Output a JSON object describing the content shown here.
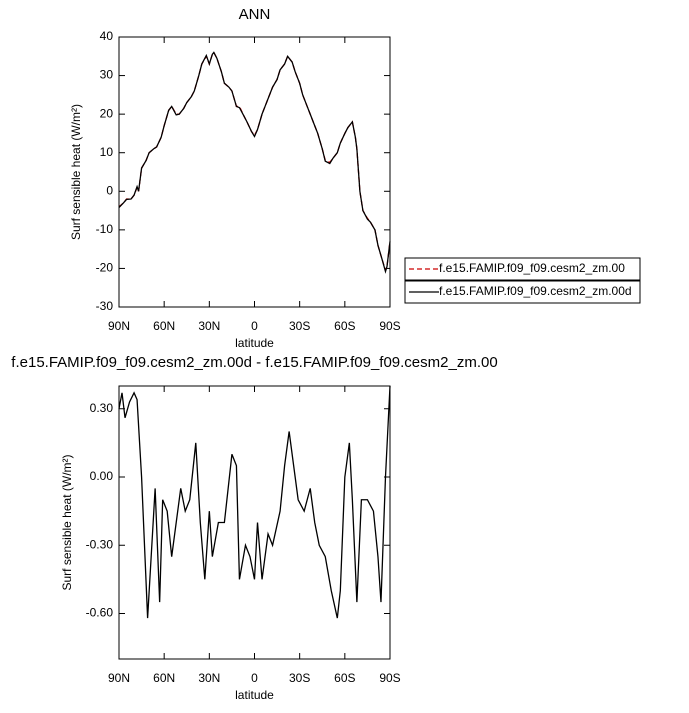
{
  "chart_data": [
    {
      "type": "line",
      "title": "ANN",
      "y_label": "Surf sensible heat (W/m²)",
      "x_label": "latitude",
      "x": [
        90,
        87,
        85,
        82,
        80,
        78,
        77,
        75,
        72,
        70,
        67,
        65,
        62,
        60,
        57,
        55,
        52,
        50,
        47,
        45,
        42,
        40,
        37,
        35,
        32,
        30,
        28,
        27,
        25,
        22,
        20,
        17,
        15,
        12,
        10,
        7,
        5,
        2,
        0,
        -2,
        -5,
        -7,
        -10,
        -12,
        -15,
        -17,
        -20,
        -22,
        -25,
        -27,
        -30,
        -32,
        -35,
        -37,
        -40,
        -42,
        -45,
        -47,
        -50,
        -52,
        -55,
        -57,
        -60,
        -62,
        -65,
        -67,
        -68,
        -70,
        -72,
        -75,
        -77,
        -80,
        -82,
        -85,
        -87,
        -88,
        -90
      ],
      "series": [
        {
          "name": "f.e15.FAMIP.f09_f09.cesm2_zm.00",
          "color": "#cc0000",
          "dash": true,
          "values": [
            -4,
            -3,
            -2,
            -2,
            -1,
            1,
            0,
            6,
            8,
            10,
            11,
            11.5,
            14,
            17,
            21,
            22,
            20,
            20,
            21.5,
            23,
            24.5,
            26,
            30,
            33,
            35,
            33,
            35.5,
            36,
            34.5,
            31,
            28,
            27,
            26,
            22,
            22,
            19.5,
            18,
            15.5,
            14.5,
            16,
            20,
            22,
            25,
            27,
            29,
            31.5,
            33,
            35,
            33.5,
            31,
            28,
            25,
            22,
            20,
            17,
            15,
            11,
            8,
            7.5,
            8.5,
            10,
            12.5,
            15,
            16.5,
            18,
            14,
            11,
            0,
            -5,
            -7,
            -8,
            -10,
            -14,
            -18,
            -20.5,
            -19.5,
            -13
          ]
        },
        {
          "name": "f.e15.FAMIP.f09_f09.cesm2_zm.00d",
          "color": "#000000",
          "dash": false,
          "values": [
            -4.2,
            -3,
            -2.1,
            -2,
            -1,
            1.2,
            0,
            6,
            8,
            10,
            11,
            11.5,
            14,
            17,
            21,
            22,
            19.8,
            20,
            21.5,
            23,
            24.5,
            26,
            30,
            33,
            35.2,
            33,
            35.5,
            36,
            34.5,
            31,
            28,
            27,
            26,
            22,
            21.7,
            19.5,
            18,
            15.5,
            14.2,
            16,
            20,
            22,
            25,
            27,
            29,
            31.5,
            33,
            35,
            33.5,
            31,
            28,
            25,
            22,
            20,
            17,
            15,
            11,
            7.8,
            7.2,
            8.5,
            10,
            12.5,
            15,
            16.5,
            18,
            14,
            11,
            0,
            -5,
            -7.2,
            -8,
            -10,
            -14,
            -18,
            -20.8,
            -19.5,
            -13
          ]
        }
      ],
      "xlim": [
        90,
        -90
      ],
      "xticks": [
        {
          "value": 90,
          "label": "90N"
        },
        {
          "value": 60,
          "label": "60N"
        },
        {
          "value": 30,
          "label": "30N"
        },
        0,
        {
          "value": -30,
          "label": "30S"
        },
        {
          "value": -60,
          "label": "60S"
        },
        {
          "value": -90,
          "label": "90S"
        }
      ],
      "ylim": [
        -30,
        40
      ],
      "yticks": [
        -30,
        -20,
        -10,
        0,
        10,
        20,
        30,
        40
      ],
      "legend": "right"
    },
    {
      "type": "line",
      "title": "f.e15.FAMIP.f09_f09.cesm2_zm.00d - f.e15.FAMIP.f09_f09.cesm2_zm.00",
      "y_label": "Surf sensible heat (W/m²)",
      "x_label": "latitude",
      "x": [
        90,
        88,
        86,
        83,
        80,
        78,
        75,
        71,
        66,
        63,
        61,
        58,
        55,
        52,
        49,
        46,
        43,
        39,
        36,
        33,
        30,
        28,
        24,
        20,
        15,
        12,
        10,
        6,
        3,
        0,
        -2,
        -5,
        -9,
        -12,
        -17,
        -20,
        -23,
        -26,
        -29,
        -33,
        -37,
        -40,
        -43,
        -47,
        -51,
        -55,
        -57,
        -60,
        -63,
        -65,
        -68,
        -71,
        -75,
        -79,
        -82,
        -84,
        -87,
        -90
      ],
      "series": [
        {
          "color": "#000000",
          "dash": false,
          "values": [
            0.3,
            0.37,
            0.26,
            0.33,
            0.37,
            0.34,
            0.0,
            -0.62,
            -0.05,
            -0.55,
            -0.1,
            -0.15,
            -0.35,
            -0.2,
            -0.05,
            -0.15,
            -0.1,
            0.15,
            -0.2,
            -0.45,
            -0.15,
            -0.35,
            -0.2,
            -0.2,
            0.1,
            0.05,
            -0.45,
            -0.3,
            -0.35,
            -0.45,
            -0.2,
            -0.45,
            -0.25,
            -0.3,
            -0.15,
            0.05,
            0.2,
            0.05,
            -0.1,
            -0.15,
            -0.05,
            -0.2,
            -0.3,
            -0.35,
            -0.5,
            -0.62,
            -0.5,
            0.0,
            0.15,
            -0.1,
            -0.55,
            -0.1,
            -0.1,
            -0.15,
            -0.35,
            -0.55,
            0.0,
            0.4
          ]
        }
      ],
      "xlim": [
        90,
        -90
      ],
      "xticks": [
        {
          "value": 90,
          "label": "90N"
        },
        {
          "value": 60,
          "label": "60N"
        },
        {
          "value": 30,
          "label": "30N"
        },
        0,
        {
          "value": -30,
          "label": "30S"
        },
        {
          "value": -60,
          "label": "60S"
        },
        {
          "value": -90,
          "label": "90S"
        }
      ],
      "ylim": [
        -0.8,
        0.4
      ],
      "yticks": [
        {
          "value": -0.6,
          "label": "-0.60"
        },
        {
          "value": -0.3,
          "label": "-0.30"
        },
        {
          "value": 0,
          "label": "0.00"
        },
        {
          "value": 0.3,
          "label": "0.30"
        }
      ]
    }
  ]
}
